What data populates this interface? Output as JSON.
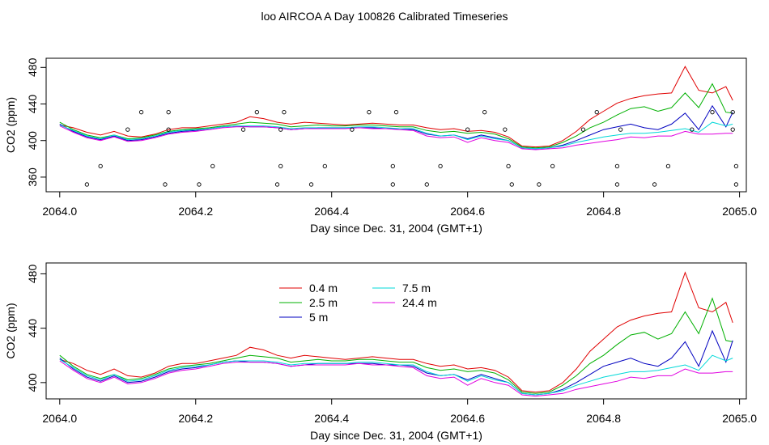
{
  "title": "loo AIRCOA A  Day 100826  Calibrated Timeseries",
  "chart_data": [
    {
      "type": "line",
      "xlabel": "Day since Dec. 31, 2004 (GMT+1)",
      "ylabel": "CO2 (ppm)",
      "xlim": [
        2063.98,
        2065.01
      ],
      "ylim": [
        344,
        490
      ],
      "x_ticks": [
        "2064.0",
        "2064.2",
        "2064.4",
        "2064.6",
        "2064.8",
        "2065.0"
      ],
      "y_ticks": [
        "360",
        "400",
        "440",
        "480"
      ],
      "series": [
        {
          "name": "0.4 m",
          "color": "#e00000",
          "x": [
            2064.0,
            2064.02,
            2064.04,
            2064.06,
            2064.08,
            2064.1,
            2064.12,
            2064.14,
            2064.16,
            2064.18,
            2064.2,
            2064.22,
            2064.24,
            2064.26,
            2064.28,
            2064.3,
            2064.32,
            2064.34,
            2064.36,
            2064.38,
            2064.4,
            2064.42,
            2064.44,
            2064.46,
            2064.48,
            2064.5,
            2064.52,
            2064.54,
            2064.56,
            2064.58,
            2064.6,
            2064.62,
            2064.64,
            2064.66,
            2064.68,
            2064.7,
            2064.72,
            2064.74,
            2064.76,
            2064.78,
            2064.8,
            2064.82,
            2064.84,
            2064.86,
            2064.88,
            2064.9,
            2064.92,
            2064.94,
            2064.96,
            2064.98,
            2064.99
          ],
          "values": [
            417,
            414,
            409,
            406,
            410,
            405,
            404,
            407,
            412,
            414,
            414,
            416,
            418,
            420,
            426,
            424,
            420,
            418,
            420,
            419,
            418,
            417,
            418,
            419,
            418,
            417,
            417,
            414,
            412,
            413,
            410,
            411,
            409,
            404,
            394,
            393,
            394,
            400,
            410,
            423,
            432,
            441,
            446,
            449,
            451,
            452,
            481,
            455,
            452,
            459,
            444
          ]
        },
        {
          "name": "2.5 m",
          "color": "#00b000",
          "x": [
            2064.0,
            2064.02,
            2064.04,
            2064.06,
            2064.08,
            2064.1,
            2064.12,
            2064.14,
            2064.16,
            2064.18,
            2064.2,
            2064.22,
            2064.24,
            2064.26,
            2064.28,
            2064.3,
            2064.32,
            2064.34,
            2064.36,
            2064.38,
            2064.4,
            2064.42,
            2064.44,
            2064.46,
            2064.48,
            2064.5,
            2064.52,
            2064.54,
            2064.56,
            2064.58,
            2064.6,
            2064.62,
            2064.64,
            2064.66,
            2064.68,
            2064.7,
            2064.72,
            2064.74,
            2064.76,
            2064.78,
            2064.8,
            2064.82,
            2064.84,
            2064.86,
            2064.88,
            2064.9,
            2064.92,
            2064.94,
            2064.96,
            2064.98,
            2064.99
          ],
          "values": [
            420,
            412,
            406,
            403,
            406,
            402,
            403,
            406,
            410,
            412,
            413,
            414,
            416,
            418,
            420,
            419,
            418,
            415,
            416,
            417,
            416,
            416,
            417,
            417,
            416,
            415,
            415,
            411,
            409,
            410,
            408,
            409,
            407,
            402,
            393,
            392,
            393,
            398,
            405,
            414,
            420,
            428,
            435,
            437,
            432,
            436,
            452,
            436,
            462,
            431,
            430
          ]
        },
        {
          "name": "5 m",
          "color": "#0000c0",
          "x": [
            2064.0,
            2064.02,
            2064.04,
            2064.06,
            2064.08,
            2064.1,
            2064.12,
            2064.14,
            2064.16,
            2064.18,
            2064.2,
            2064.22,
            2064.24,
            2064.26,
            2064.28,
            2064.3,
            2064.32,
            2064.34,
            2064.36,
            2064.38,
            2064.4,
            2064.42,
            2064.44,
            2064.46,
            2064.48,
            2064.5,
            2064.52,
            2064.54,
            2064.56,
            2064.58,
            2064.6,
            2064.62,
            2064.64,
            2064.66,
            2064.68,
            2064.7,
            2064.72,
            2064.74,
            2064.76,
            2064.78,
            2064.8,
            2064.82,
            2064.84,
            2064.86,
            2064.88,
            2064.9,
            2064.92,
            2064.94,
            2064.96,
            2064.98,
            2064.99
          ],
          "values": [
            418,
            410,
            404,
            401,
            405,
            400,
            401,
            404,
            408,
            410,
            411,
            413,
            415,
            416,
            415,
            415,
            414,
            412,
            413,
            414,
            414,
            414,
            414,
            414,
            413,
            413,
            412,
            407,
            405,
            406,
            402,
            406,
            403,
            400,
            392,
            391,
            392,
            395,
            400,
            406,
            412,
            415,
            418,
            414,
            412,
            418,
            430,
            412,
            438,
            415,
            431
          ]
        },
        {
          "name": "7.5 m",
          "color": "#00d8d8",
          "x": [
            2064.0,
            2064.02,
            2064.04,
            2064.06,
            2064.08,
            2064.1,
            2064.12,
            2064.14,
            2064.16,
            2064.18,
            2064.2,
            2064.22,
            2064.24,
            2064.26,
            2064.28,
            2064.3,
            2064.32,
            2064.34,
            2064.36,
            2064.38,
            2064.4,
            2064.42,
            2064.44,
            2064.46,
            2064.48,
            2064.5,
            2064.52,
            2064.54,
            2064.56,
            2064.58,
            2064.6,
            2064.62,
            2064.64,
            2064.66,
            2064.68,
            2064.7,
            2064.72,
            2064.74,
            2064.76,
            2064.78,
            2064.8,
            2064.82,
            2064.84,
            2064.86,
            2064.88,
            2064.9,
            2064.92,
            2064.94,
            2064.96,
            2064.98,
            2064.99
          ],
          "values": [
            417,
            411,
            405,
            402,
            406,
            401,
            402,
            405,
            409,
            411,
            412,
            413,
            415,
            416,
            416,
            416,
            415,
            413,
            414,
            414,
            414,
            414,
            415,
            415,
            414,
            413,
            413,
            408,
            405,
            406,
            401,
            405,
            402,
            400,
            392,
            391,
            392,
            394,
            398,
            401,
            404,
            406,
            408,
            408,
            409,
            411,
            413,
            409,
            420,
            416,
            418
          ]
        },
        {
          "name": "24.4 m",
          "color": "#e000e0",
          "x": [
            2064.0,
            2064.02,
            2064.04,
            2064.06,
            2064.08,
            2064.1,
            2064.12,
            2064.14,
            2064.16,
            2064.18,
            2064.2,
            2064.22,
            2064.24,
            2064.26,
            2064.28,
            2064.3,
            2064.32,
            2064.34,
            2064.36,
            2064.38,
            2064.4,
            2064.42,
            2064.44,
            2064.46,
            2064.48,
            2064.5,
            2064.52,
            2064.54,
            2064.56,
            2064.58,
            2064.6,
            2064.62,
            2064.64,
            2064.66,
            2064.68,
            2064.7,
            2064.72,
            2064.74,
            2064.76,
            2064.78,
            2064.8,
            2064.82,
            2064.84,
            2064.86,
            2064.88,
            2064.9,
            2064.92,
            2064.94,
            2064.96,
            2064.98,
            2064.99
          ],
          "values": [
            416,
            409,
            403,
            400,
            404,
            399,
            400,
            403,
            407,
            409,
            410,
            412,
            414,
            415,
            415,
            415,
            414,
            412,
            413,
            413,
            413,
            413,
            414,
            413,
            413,
            412,
            411,
            405,
            403,
            404,
            398,
            403,
            400,
            398,
            391,
            390,
            391,
            392,
            395,
            397,
            399,
            401,
            404,
            403,
            405,
            405,
            410,
            407,
            407,
            408,
            408
          ]
        }
      ],
      "markers": {
        "color": "#000000",
        "x": [
          2064.04,
          2064.06,
          2064.1,
          2064.12,
          2064.155,
          2064.16,
          2064.16,
          2064.205,
          2064.225,
          2064.27,
          2064.29,
          2064.32,
          2064.325,
          2064.325,
          2064.33,
          2064.37,
          2064.39,
          2064.43,
          2064.455,
          2064.49,
          2064.49,
          2064.495,
          2064.54,
          2064.56,
          2064.6,
          2064.625,
          2064.655,
          2064.66,
          2064.665,
          2064.705,
          2064.725,
          2064.77,
          2064.79,
          2064.82,
          2064.82,
          2064.825,
          2064.875,
          2064.895,
          2064.93,
          2064.96,
          2064.99,
          2064.99,
          2064.995,
          2064.995
        ],
        "values": [
          352,
          372,
          412,
          431,
          352,
          412,
          431,
          352,
          372,
          412,
          431,
          352,
          372,
          412,
          431,
          352,
          372,
          412,
          431,
          352,
          372,
          431,
          352,
          372,
          412,
          431,
          412,
          372,
          352,
          352,
          372,
          412,
          431,
          352,
          372,
          412,
          352,
          372,
          412,
          431,
          431,
          412,
          372,
          352
        ]
      }
    },
    {
      "type": "line",
      "xlabel": "Day since Dec. 31, 2004 (GMT+1)",
      "ylabel": "CO2 (ppm)",
      "xlim": [
        2063.98,
        2065.01
      ],
      "ylim": [
        388,
        488
      ],
      "x_ticks": [
        "2064.0",
        "2064.2",
        "2064.4",
        "2064.6",
        "2064.8",
        "2065.0"
      ],
      "y_ticks": [
        "400",
        "440",
        "480"
      ],
      "legend": {
        "placement": "top-left",
        "entries": [
          "0.4 m",
          "2.5 m",
          "5 m",
          "7.5 m",
          "24.4 m"
        ]
      },
      "series_ref": "same as first chart"
    }
  ]
}
